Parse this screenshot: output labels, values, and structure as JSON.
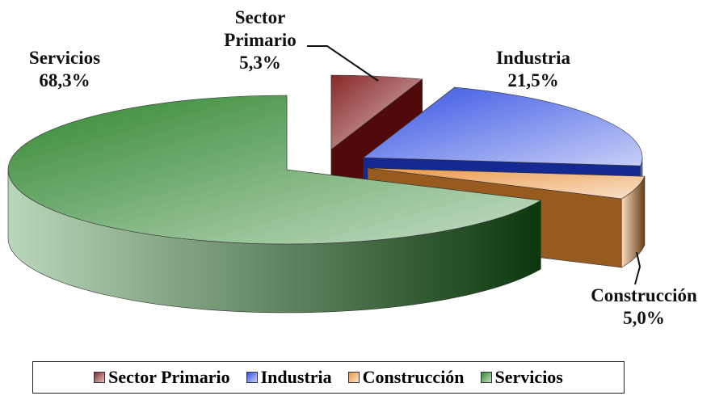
{
  "chart_data": {
    "type": "pie3d",
    "categories": [
      "Sector Primario",
      "Industria",
      "Construcción",
      "Servicios"
    ],
    "values": [
      5.3,
      21.5,
      5.0,
      68.3
    ],
    "value_labels": [
      "5,3%",
      "21,5%",
      "5,0%",
      "68,3%"
    ],
    "colors": [
      "#7b1010",
      "#1f3fe0",
      "#e88a30",
      "#1a7a1a"
    ],
    "legend": "bottom"
  }
}
